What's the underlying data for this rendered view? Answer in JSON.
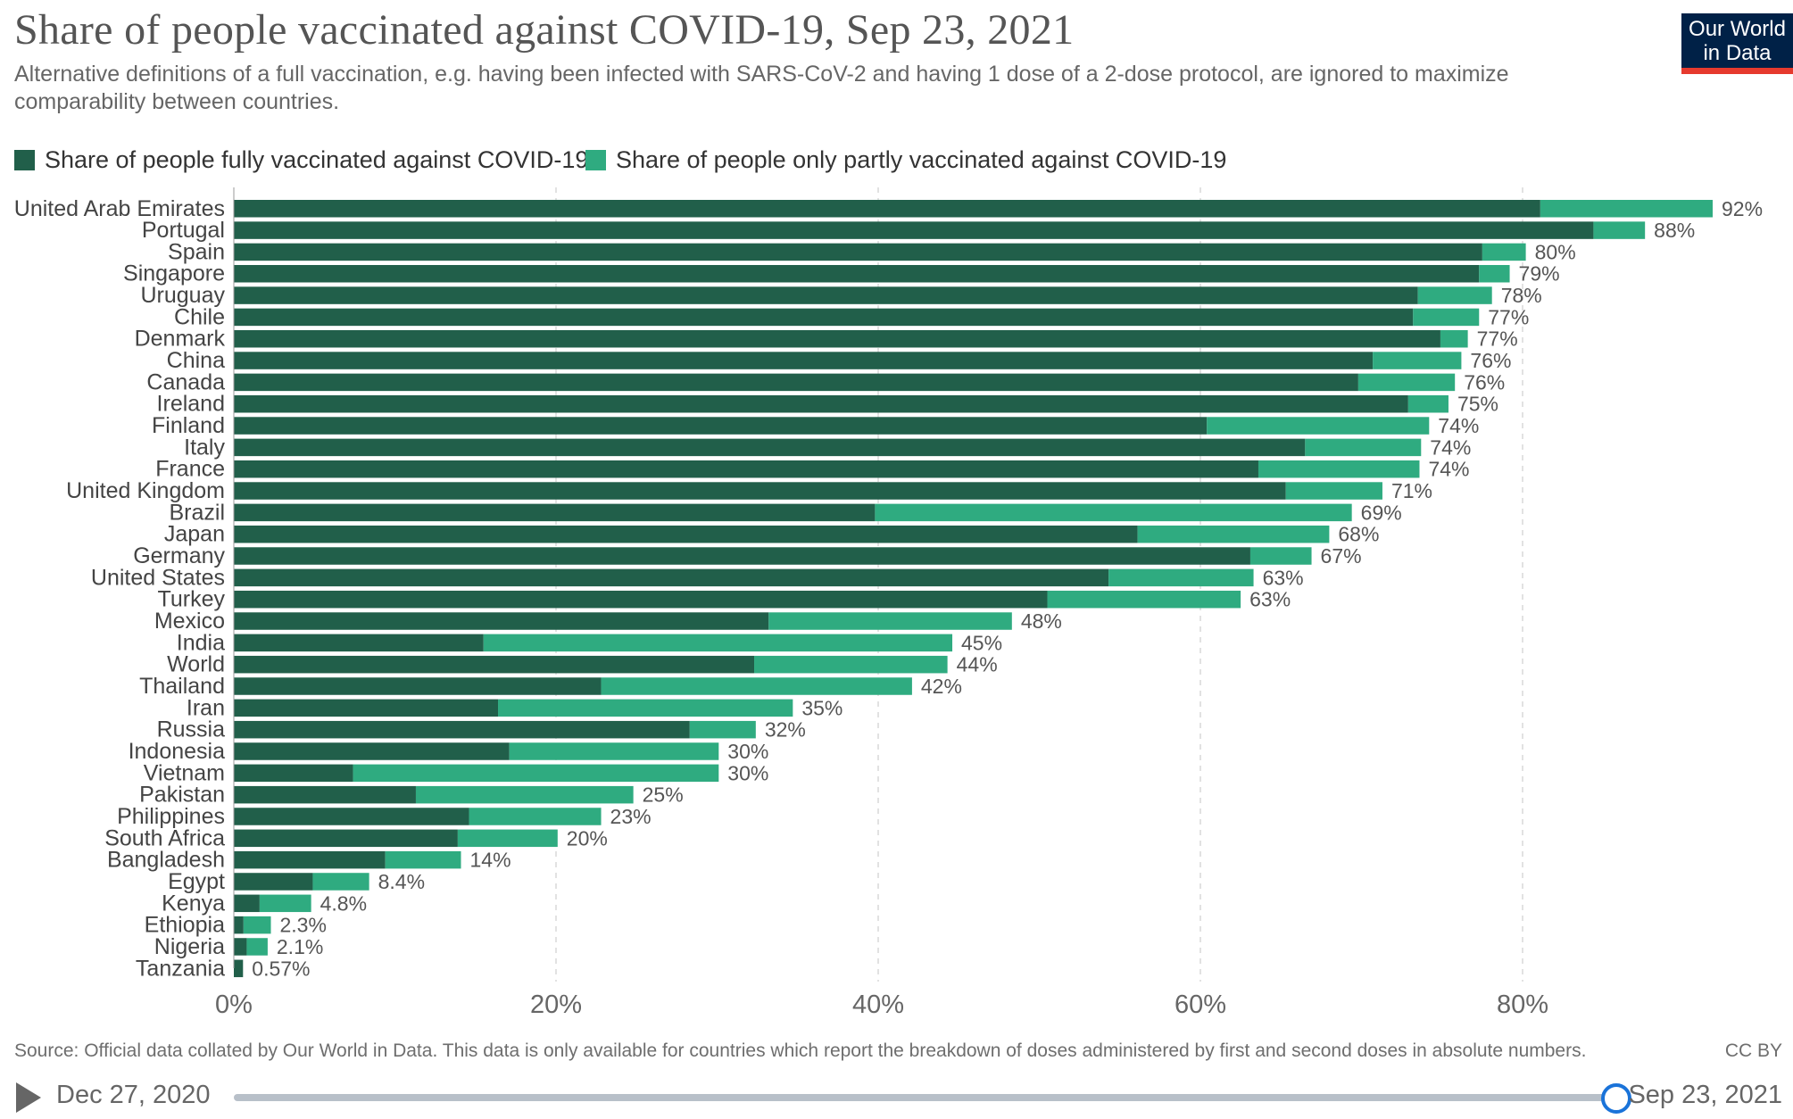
{
  "header": {
    "title": "Share of people vaccinated against COVID-19, Sep 23, 2021",
    "subtitle": "Alternative definitions of a full vaccination, e.g. having been infected with SARS-CoV-2 and having 1 dose of a 2-dose protocol, are ignored to maximize comparability between countries.",
    "logo_line1": "Our World",
    "logo_line2": "in Data"
  },
  "colors": {
    "full": "#215f4a",
    "partial": "#2fab80",
    "logo_bg": "#002147",
    "logo_accent": "#e63a2e"
  },
  "legend": {
    "full_label": "Share of people fully vaccinated against COVID-19",
    "partial_label": "Share of people only partly vaccinated against COVID-19"
  },
  "chart_data": {
    "type": "bar",
    "orientation": "horizontal",
    "stacked": true,
    "categories": [
      "United Arab Emirates",
      "Portugal",
      "Spain",
      "Singapore",
      "Uruguay",
      "Chile",
      "Denmark",
      "China",
      "Canada",
      "Ireland",
      "Finland",
      "Italy",
      "France",
      "United Kingdom",
      "Brazil",
      "Japan",
      "Germany",
      "United States",
      "Turkey",
      "Mexico",
      "India",
      "World",
      "Thailand",
      "Iran",
      "Russia",
      "Indonesia",
      "Vietnam",
      "Pakistan",
      "Philippines",
      "South Africa",
      "Bangladesh",
      "Egypt",
      "Kenya",
      "Ethiopia",
      "Nigeria",
      "Tanzania"
    ],
    "series": [
      {
        "name": "Share of people fully vaccinated against COVID-19",
        "values": [
          81.1,
          84.4,
          77.5,
          77.3,
          73.5,
          73.2,
          74.9,
          70.7,
          69.8,
          72.9,
          60.4,
          66.5,
          63.6,
          65.3,
          39.8,
          56.1,
          63.1,
          54.3,
          50.5,
          33.2,
          15.5,
          32.3,
          22.8,
          16.4,
          28.3,
          17.1,
          7.4,
          11.3,
          14.6,
          13.9,
          9.4,
          4.9,
          1.6,
          0.6,
          0.8,
          0.57
        ]
      },
      {
        "name": "Share of people only partly vaccinated against COVID-19",
        "values": [
          10.7,
          3.2,
          2.7,
          1.9,
          4.6,
          4.1,
          1.7,
          5.5,
          6.0,
          2.5,
          13.8,
          7.2,
          10.0,
          6.0,
          29.6,
          11.9,
          3.8,
          9.0,
          12.0,
          15.1,
          29.1,
          12.0,
          19.3,
          18.3,
          4.1,
          13.0,
          22.7,
          13.5,
          8.2,
          6.2,
          4.7,
          3.5,
          3.2,
          1.7,
          1.3,
          0.0
        ]
      }
    ],
    "data_labels": [
      "92%",
      "88%",
      "80%",
      "79%",
      "78%",
      "77%",
      "77%",
      "76%",
      "76%",
      "75%",
      "74%",
      "74%",
      "74%",
      "71%",
      "69%",
      "68%",
      "67%",
      "63%",
      "63%",
      "48%",
      "45%",
      "44%",
      "42%",
      "35%",
      "32%",
      "30%",
      "30%",
      "25%",
      "23%",
      "20%",
      "14%",
      "8.4%",
      "4.8%",
      "2.3%",
      "2.1%",
      "0.57%"
    ],
    "x_ticks": [
      "0%",
      "20%",
      "40%",
      "60%",
      "80%"
    ],
    "x_tick_values": [
      0,
      20,
      40,
      60,
      80
    ],
    "xlim": [
      0,
      100
    ],
    "grid": "vertical dashed",
    "legend_position": "top-left"
  },
  "footer": {
    "source": "Source: Official data collated by Our World in Data. This data is only available for countries which report the breakdown of doses administered by first and second doses in absolute numbers.",
    "license": "CC BY"
  },
  "timeline": {
    "start": "Dec 27, 2020",
    "end": "Sep 23, 2021",
    "position": 1.0
  }
}
